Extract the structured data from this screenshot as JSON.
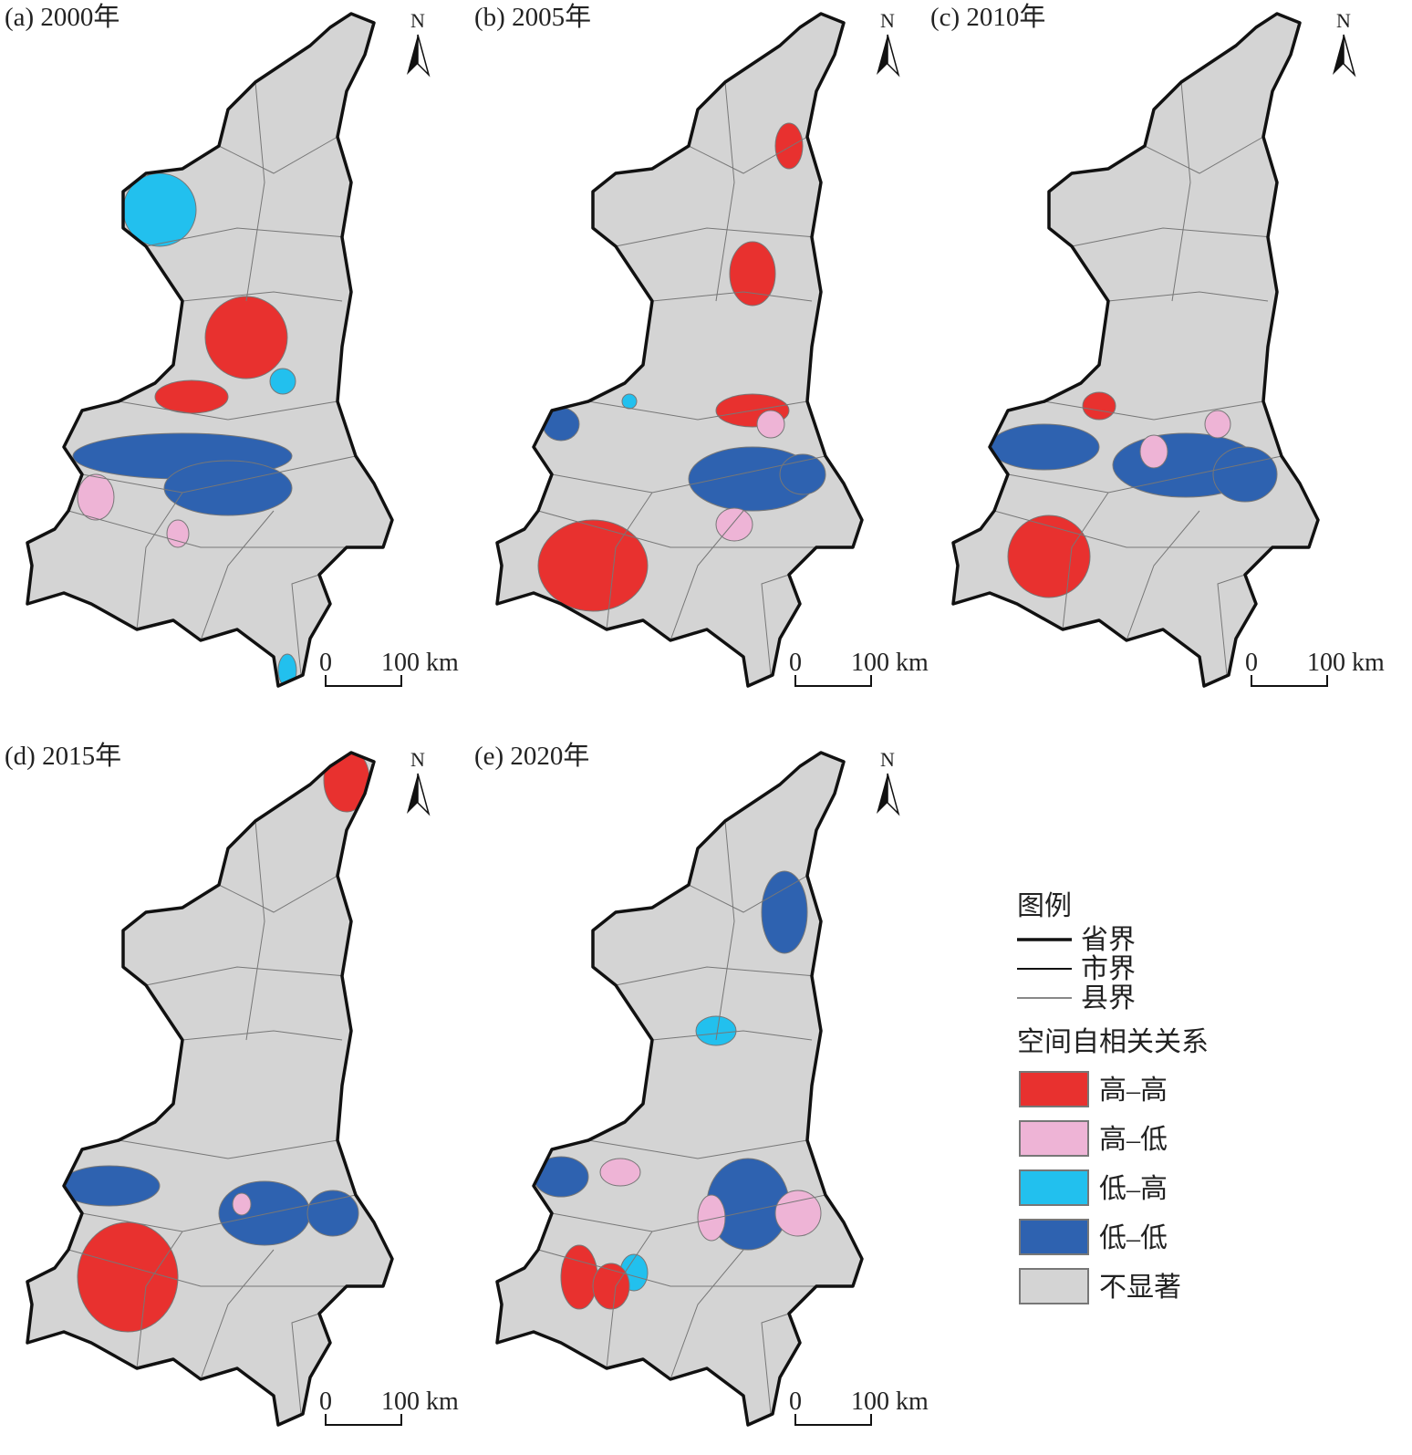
{
  "panels": [
    {
      "title": "(a) 2000年",
      "north": "N",
      "scale_start": "0",
      "scale_end": "100 km"
    },
    {
      "title": "(b) 2005年",
      "north": "N",
      "scale_start": "0",
      "scale_end": "100 km"
    },
    {
      "title": "(c) 2010年",
      "north": "N",
      "scale_start": "0",
      "scale_end": "100 km"
    },
    {
      "title": "(d) 2015年",
      "north": "N",
      "scale_start": "0",
      "scale_end": "100 km"
    },
    {
      "title": "(e) 2020年",
      "north": "N",
      "scale_start": "0",
      "scale_end": "100 km"
    }
  ],
  "legend": {
    "title": "图例",
    "boundaries": [
      "省界",
      "市界",
      "县界"
    ],
    "subtitle": "空间自相关关系",
    "classes": [
      {
        "label": "高–高",
        "color": "#e8312f"
      },
      {
        "label": "高–低",
        "color": "#eeb4d6"
      },
      {
        "label": "低–高",
        "color": "#22c0ee"
      },
      {
        "label": "低–低",
        "color": "#2e62b0"
      },
      {
        "label": "不显著",
        "color": "#d4d4d4"
      }
    ]
  }
}
